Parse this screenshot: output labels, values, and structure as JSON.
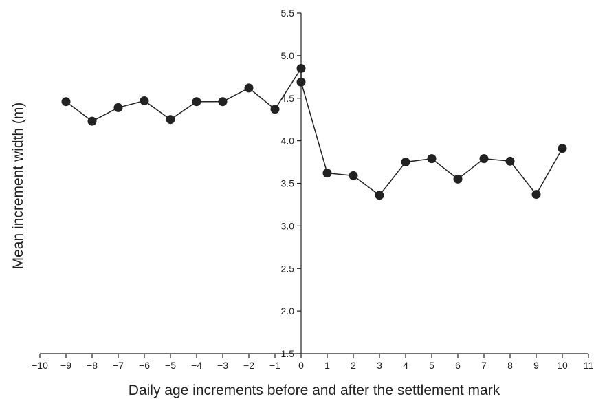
{
  "chart_data": {
    "type": "line",
    "xlabel": "Daily age increments before and after the settlement mark",
    "ylabel": "Mean increment width (m)",
    "xlim": [
      -10,
      11
    ],
    "ylim": [
      1.5,
      5.5
    ],
    "x_ticks": [
      -10,
      -9,
      -8,
      -7,
      -6,
      -5,
      -4,
      -3,
      -2,
      -1,
      0,
      1,
      2,
      3,
      4,
      5,
      6,
      7,
      8,
      9,
      10,
      11
    ],
    "x_tick_labels": [
      "−10",
      "−9",
      "−8",
      "−7",
      "−6",
      "−5",
      "−4",
      "−3",
      "−2",
      "−1",
      "0",
      "1",
      "2",
      "3",
      "4",
      "5",
      "6",
      "7",
      "8",
      "9",
      "10",
      "11"
    ],
    "y_ticks": [
      1.5,
      2.0,
      2.5,
      3.0,
      3.5,
      4.0,
      4.5,
      5.0,
      5.5
    ],
    "y_tick_labels": [
      "1.5",
      "2.0",
      "2.5",
      "3.0",
      "3.5",
      "4.0",
      "4.5",
      "5.0",
      "5.5"
    ],
    "y_axis_at_x": 0,
    "grid": false,
    "series": [
      {
        "color": "#222222",
        "points": [
          {
            "x": -9,
            "y": 4.46
          },
          {
            "x": -8,
            "y": 4.23
          },
          {
            "x": -7,
            "y": 4.39
          },
          {
            "x": -6,
            "y": 4.47
          },
          {
            "x": -5,
            "y": 4.25
          },
          {
            "x": -4,
            "y": 4.46
          },
          {
            "x": -3,
            "y": 4.46
          },
          {
            "x": -2,
            "y": 4.62
          },
          {
            "x": -1,
            "y": 4.37
          },
          {
            "x": 0,
            "y": 4.85
          },
          {
            "x": 0,
            "y": 4.69
          },
          {
            "x": 1,
            "y": 3.62
          },
          {
            "x": 2,
            "y": 3.59
          },
          {
            "x": 3,
            "y": 3.36
          },
          {
            "x": 4,
            "y": 3.75
          },
          {
            "x": 5,
            "y": 3.79
          },
          {
            "x": 6,
            "y": 3.55
          },
          {
            "x": 7,
            "y": 3.79
          },
          {
            "x": 8,
            "y": 3.76
          },
          {
            "x": 9,
            "y": 3.37
          },
          {
            "x": 10,
            "y": 3.91
          }
        ]
      }
    ]
  }
}
